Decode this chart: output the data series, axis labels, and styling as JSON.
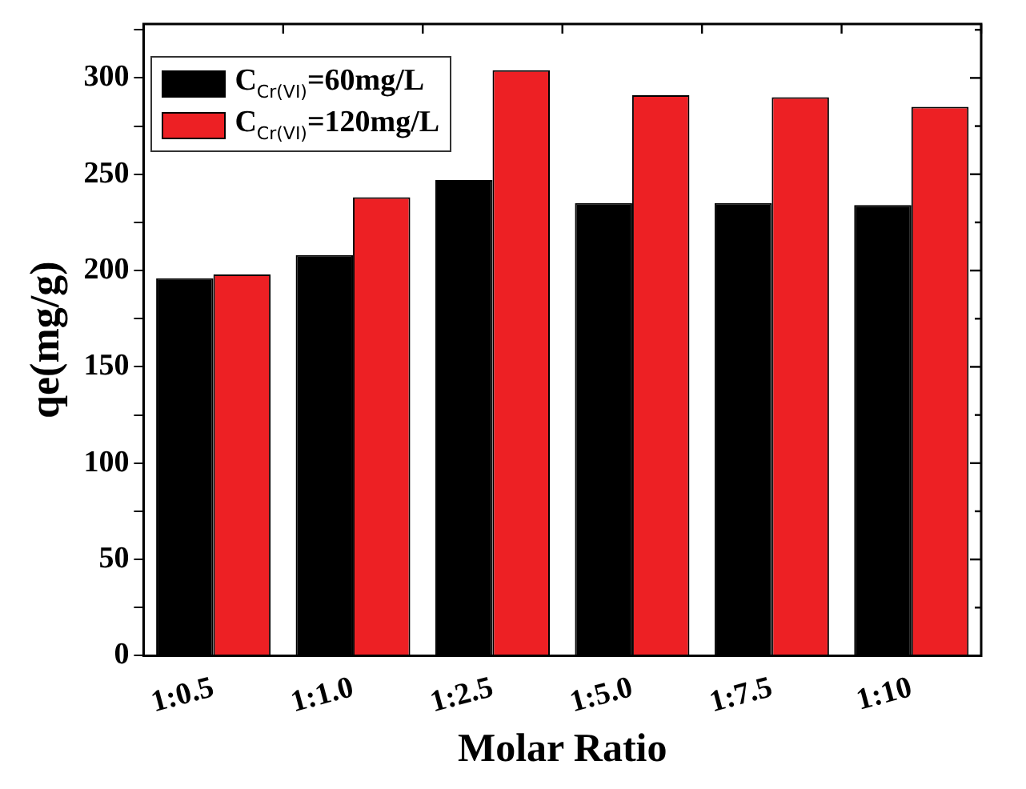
{
  "chart_data": {
    "type": "bar",
    "xlabel": "Molar Ratio",
    "ylabel": "qe(mg/g)",
    "categories": [
      "1:0.5",
      "1:1.0",
      "1:2.5",
      "1:5.0",
      "1:7.5",
      "1:10"
    ],
    "series": [
      {
        "name": "C$_{Cr(VI)}$=60mg/L",
        "color": "#000000",
        "values": [
          196,
          208,
          247,
          235,
          235,
          234
        ]
      },
      {
        "name": "C$_{Cr(VI)}$=120mg/L",
        "color": "#ed2024",
        "values": [
          198,
          238,
          304,
          291,
          290,
          285
        ]
      }
    ],
    "ylim": [
      0,
      328
    ],
    "yticks": [
      0,
      {
        "value": 25,
        "label": null
      },
      50,
      {
        "value": 75,
        "label": null
      },
      100,
      {
        "value": 125,
        "label": null
      },
      150,
      {
        "value": 175,
        "label": null
      },
      200,
      {
        "value": 225,
        "label": null
      },
      250,
      {
        "value": 275,
        "label": null
      },
      300,
      {
        "value": 325,
        "label": null
      }
    ],
    "legend": "top left",
    "grid": false
  }
}
